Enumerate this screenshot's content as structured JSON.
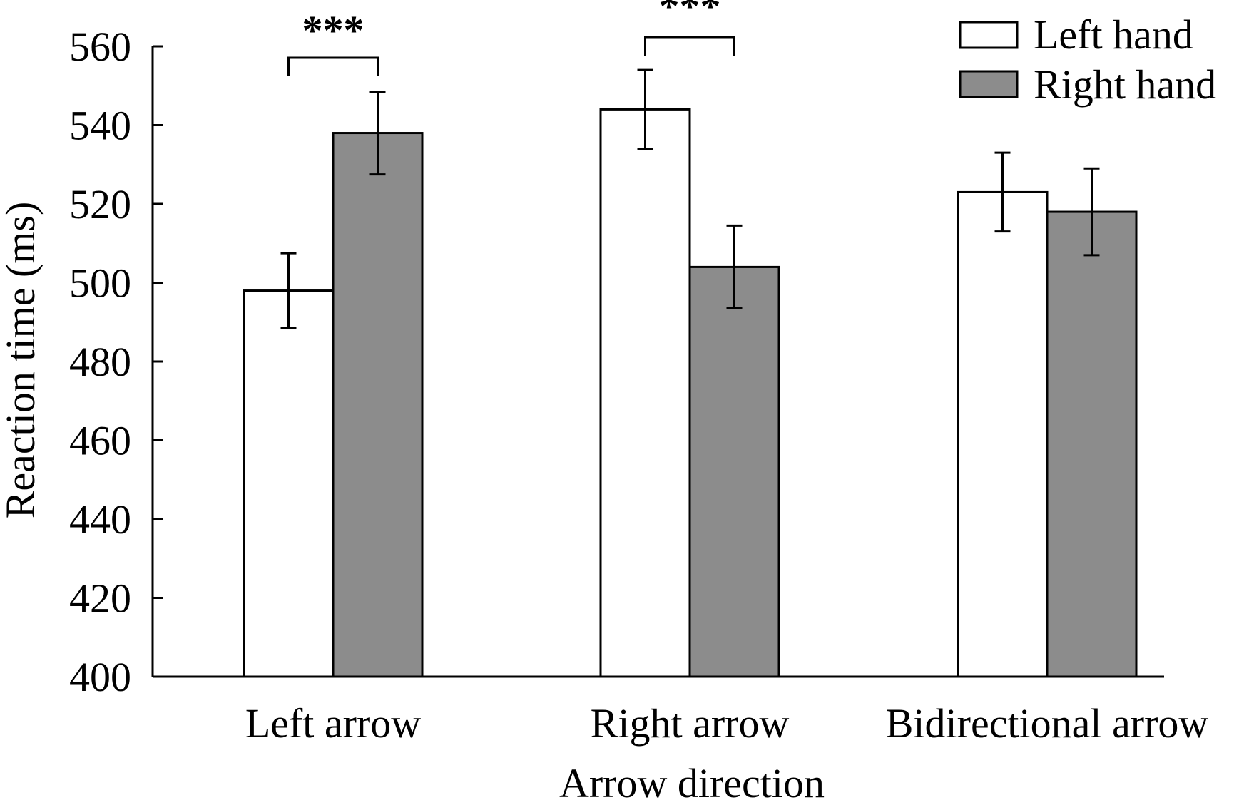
{
  "chart_data": {
    "type": "bar",
    "title": "",
    "xlabel": "Arrow direction",
    "ylabel": "Reaction time (ms)",
    "ylim": [
      400,
      560
    ],
    "yticks": [
      400,
      420,
      440,
      460,
      480,
      500,
      520,
      540,
      560
    ],
    "ytick_labels": [
      "400",
      "420",
      "440",
      "460",
      "480",
      "500",
      "520",
      "540",
      "560"
    ],
    "categories": [
      "Left arrow",
      "Right arrow",
      "Bidirectional arrow"
    ],
    "series": [
      {
        "name": "Left hand",
        "color": "#ffffff",
        "values": [
          498,
          544,
          523
        ],
        "errors": [
          9.5,
          10,
          10
        ]
      },
      {
        "name": "Right hand",
        "color": "#8c8c8c",
        "values": [
          538,
          504,
          518
        ],
        "errors": [
          10.5,
          10.5,
          11
        ]
      }
    ],
    "significance": [
      {
        "category_index": 0,
        "label": "***"
      },
      {
        "category_index": 1,
        "label": "***"
      }
    ],
    "legend_position": "top-right",
    "grid": false
  }
}
